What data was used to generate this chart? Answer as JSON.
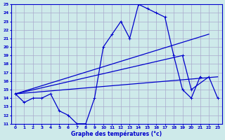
{
  "title": "Graphe des températures (°c)",
  "background_color": "#ceeaea",
  "grid_color": "#aaaacc",
  "line_color": "#0000cc",
  "xmin": 0,
  "xmax": 23,
  "ymin": 11,
  "ymax": 25,
  "line1_x": [
    0,
    1,
    2,
    3,
    4,
    5,
    6,
    7,
    8,
    9,
    10,
    11,
    12,
    13,
    14,
    15,
    16,
    17,
    18,
    19,
    20,
    21
  ],
  "line1_y": [
    14.5,
    13.5,
    14.0,
    14.0,
    14.5,
    12.5,
    12.0,
    11.0,
    11.0,
    14.0,
    20.0,
    21.5,
    23.0,
    21.0,
    25.0,
    24.5,
    24.0,
    23.5,
    19.0,
    15.0,
    14.0,
    16.5
  ],
  "line2_x": [
    0,
    22
  ],
  "line2_y": [
    14.5,
    21.5
  ],
  "line3_x": [
    0,
    19,
    20,
    22,
    23
  ],
  "line3_y": [
    14.5,
    19.0,
    15.0,
    16.5,
    14.0
  ],
  "line4_x": [
    0,
    23
  ],
  "line4_y": [
    14.5,
    16.5
  ]
}
